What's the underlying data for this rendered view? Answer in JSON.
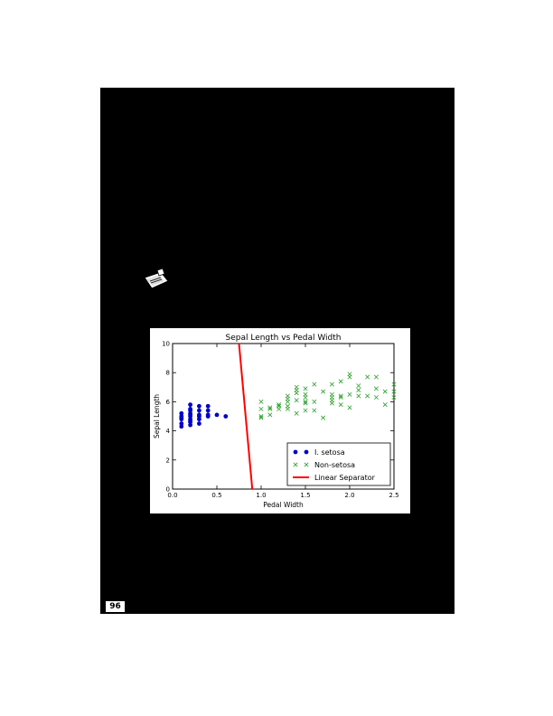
{
  "page": {
    "number": "96"
  },
  "icons": {
    "note": "note-icon"
  },
  "chart_data": {
    "type": "scatter",
    "title": "Sepal Length vs Pedal Width",
    "xlabel": "Pedal Width",
    "ylabel": "Sepal Length",
    "xlim": [
      0.0,
      2.5
    ],
    "ylim": [
      0,
      10
    ],
    "xticks": [
      "0.0",
      "0.5",
      "1.0",
      "1.5",
      "2.0",
      "2.5"
    ],
    "yticks": [
      "0",
      "2",
      "4",
      "6",
      "8",
      "10"
    ],
    "grid": false,
    "legend_position": "lower-right",
    "series": [
      {
        "name": "I. setosa",
        "marker": "o",
        "color": "#0000cc",
        "points": [
          [
            0.1,
            4.3
          ],
          [
            0.1,
            4.5
          ],
          [
            0.1,
            4.8
          ],
          [
            0.1,
            4.9
          ],
          [
            0.1,
            5.0
          ],
          [
            0.1,
            5.2
          ],
          [
            0.2,
            4.4
          ],
          [
            0.2,
            4.6
          ],
          [
            0.2,
            4.7
          ],
          [
            0.2,
            4.8
          ],
          [
            0.2,
            5.0
          ],
          [
            0.2,
            5.1
          ],
          [
            0.2,
            5.2
          ],
          [
            0.2,
            5.4
          ],
          [
            0.2,
            5.5
          ],
          [
            0.2,
            5.8
          ],
          [
            0.3,
            4.5
          ],
          [
            0.3,
            4.8
          ],
          [
            0.3,
            5.0
          ],
          [
            0.3,
            5.1
          ],
          [
            0.3,
            5.4
          ],
          [
            0.3,
            5.7
          ],
          [
            0.4,
            5.0
          ],
          [
            0.4,
            5.1
          ],
          [
            0.4,
            5.4
          ],
          [
            0.4,
            5.7
          ],
          [
            0.5,
            5.1
          ],
          [
            0.6,
            5.0
          ]
        ]
      },
      {
        "name": "Non-setosa",
        "marker": "x",
        "color": "#2ca02c",
        "points": [
          [
            1.0,
            4.9
          ],
          [
            1.0,
            5.0
          ],
          [
            1.0,
            5.5
          ],
          [
            1.0,
            6.0
          ],
          [
            1.1,
            5.1
          ],
          [
            1.1,
            5.5
          ],
          [
            1.1,
            5.6
          ],
          [
            1.2,
            5.5
          ],
          [
            1.2,
            5.7
          ],
          [
            1.2,
            5.8
          ],
          [
            1.3,
            5.5
          ],
          [
            1.3,
            5.7
          ],
          [
            1.3,
            6.0
          ],
          [
            1.3,
            6.2
          ],
          [
            1.3,
            6.4
          ],
          [
            1.4,
            5.2
          ],
          [
            1.4,
            6.1
          ],
          [
            1.4,
            6.6
          ],
          [
            1.4,
            6.8
          ],
          [
            1.4,
            7.0
          ],
          [
            1.5,
            5.4
          ],
          [
            1.5,
            5.9
          ],
          [
            1.5,
            6.0
          ],
          [
            1.5,
            6.3
          ],
          [
            1.5,
            6.5
          ],
          [
            1.5,
            6.9
          ],
          [
            1.6,
            5.4
          ],
          [
            1.6,
            6.0
          ],
          [
            1.6,
            7.2
          ],
          [
            1.7,
            4.9
          ],
          [
            1.7,
            6.7
          ],
          [
            1.8,
            5.9
          ],
          [
            1.8,
            6.1
          ],
          [
            1.8,
            6.3
          ],
          [
            1.8,
            6.5
          ],
          [
            1.8,
            7.2
          ],
          [
            1.9,
            5.8
          ],
          [
            1.9,
            6.3
          ],
          [
            1.9,
            6.4
          ],
          [
            1.9,
            7.4
          ],
          [
            2.0,
            5.6
          ],
          [
            2.0,
            6.5
          ],
          [
            2.0,
            7.7
          ],
          [
            2.0,
            7.9
          ],
          [
            2.1,
            6.4
          ],
          [
            2.1,
            6.8
          ],
          [
            2.1,
            7.1
          ],
          [
            2.2,
            6.4
          ],
          [
            2.2,
            7.7
          ],
          [
            2.3,
            6.3
          ],
          [
            2.3,
            6.9
          ],
          [
            2.3,
            7.7
          ],
          [
            2.4,
            5.8
          ],
          [
            2.4,
            6.7
          ],
          [
            2.5,
            6.3
          ],
          [
            2.5,
            6.7
          ],
          [
            2.5,
            7.2
          ]
        ]
      },
      {
        "name": "Linear Separator",
        "type": "line",
        "color": "#ff0000",
        "points": [
          [
            0.75,
            10.0
          ],
          [
            0.9,
            0.0
          ]
        ]
      }
    ]
  }
}
